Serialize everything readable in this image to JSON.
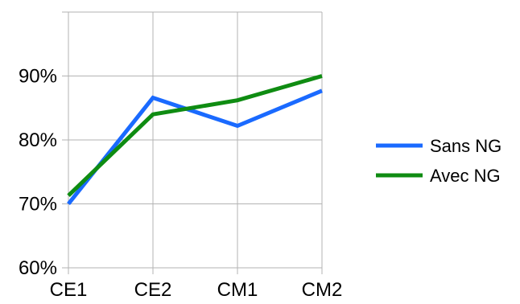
{
  "chart_data": {
    "type": "line",
    "categories": [
      "CE1",
      "CE2",
      "CM1",
      "CM2"
    ],
    "series": [
      {
        "name": "Sans NG",
        "values": [
          0.7,
          0.866,
          0.822,
          0.877
        ],
        "color": "#1a6aff"
      },
      {
        "name": "Avec NG",
        "values": [
          0.713,
          0.84,
          0.862,
          0.9
        ],
        "color": "#0f8c12"
      }
    ],
    "yticks": [
      {
        "value": 0.6,
        "label": "60%"
      },
      {
        "value": 0.7,
        "label": "70%"
      },
      {
        "value": 0.8,
        "label": "80%"
      },
      {
        "value": 0.9,
        "label": "90%"
      }
    ],
    "ylim": [
      0.6,
      1.0
    ],
    "grid": true,
    "legend_position": "right",
    "title": "",
    "xlabel": "",
    "ylabel": ""
  }
}
